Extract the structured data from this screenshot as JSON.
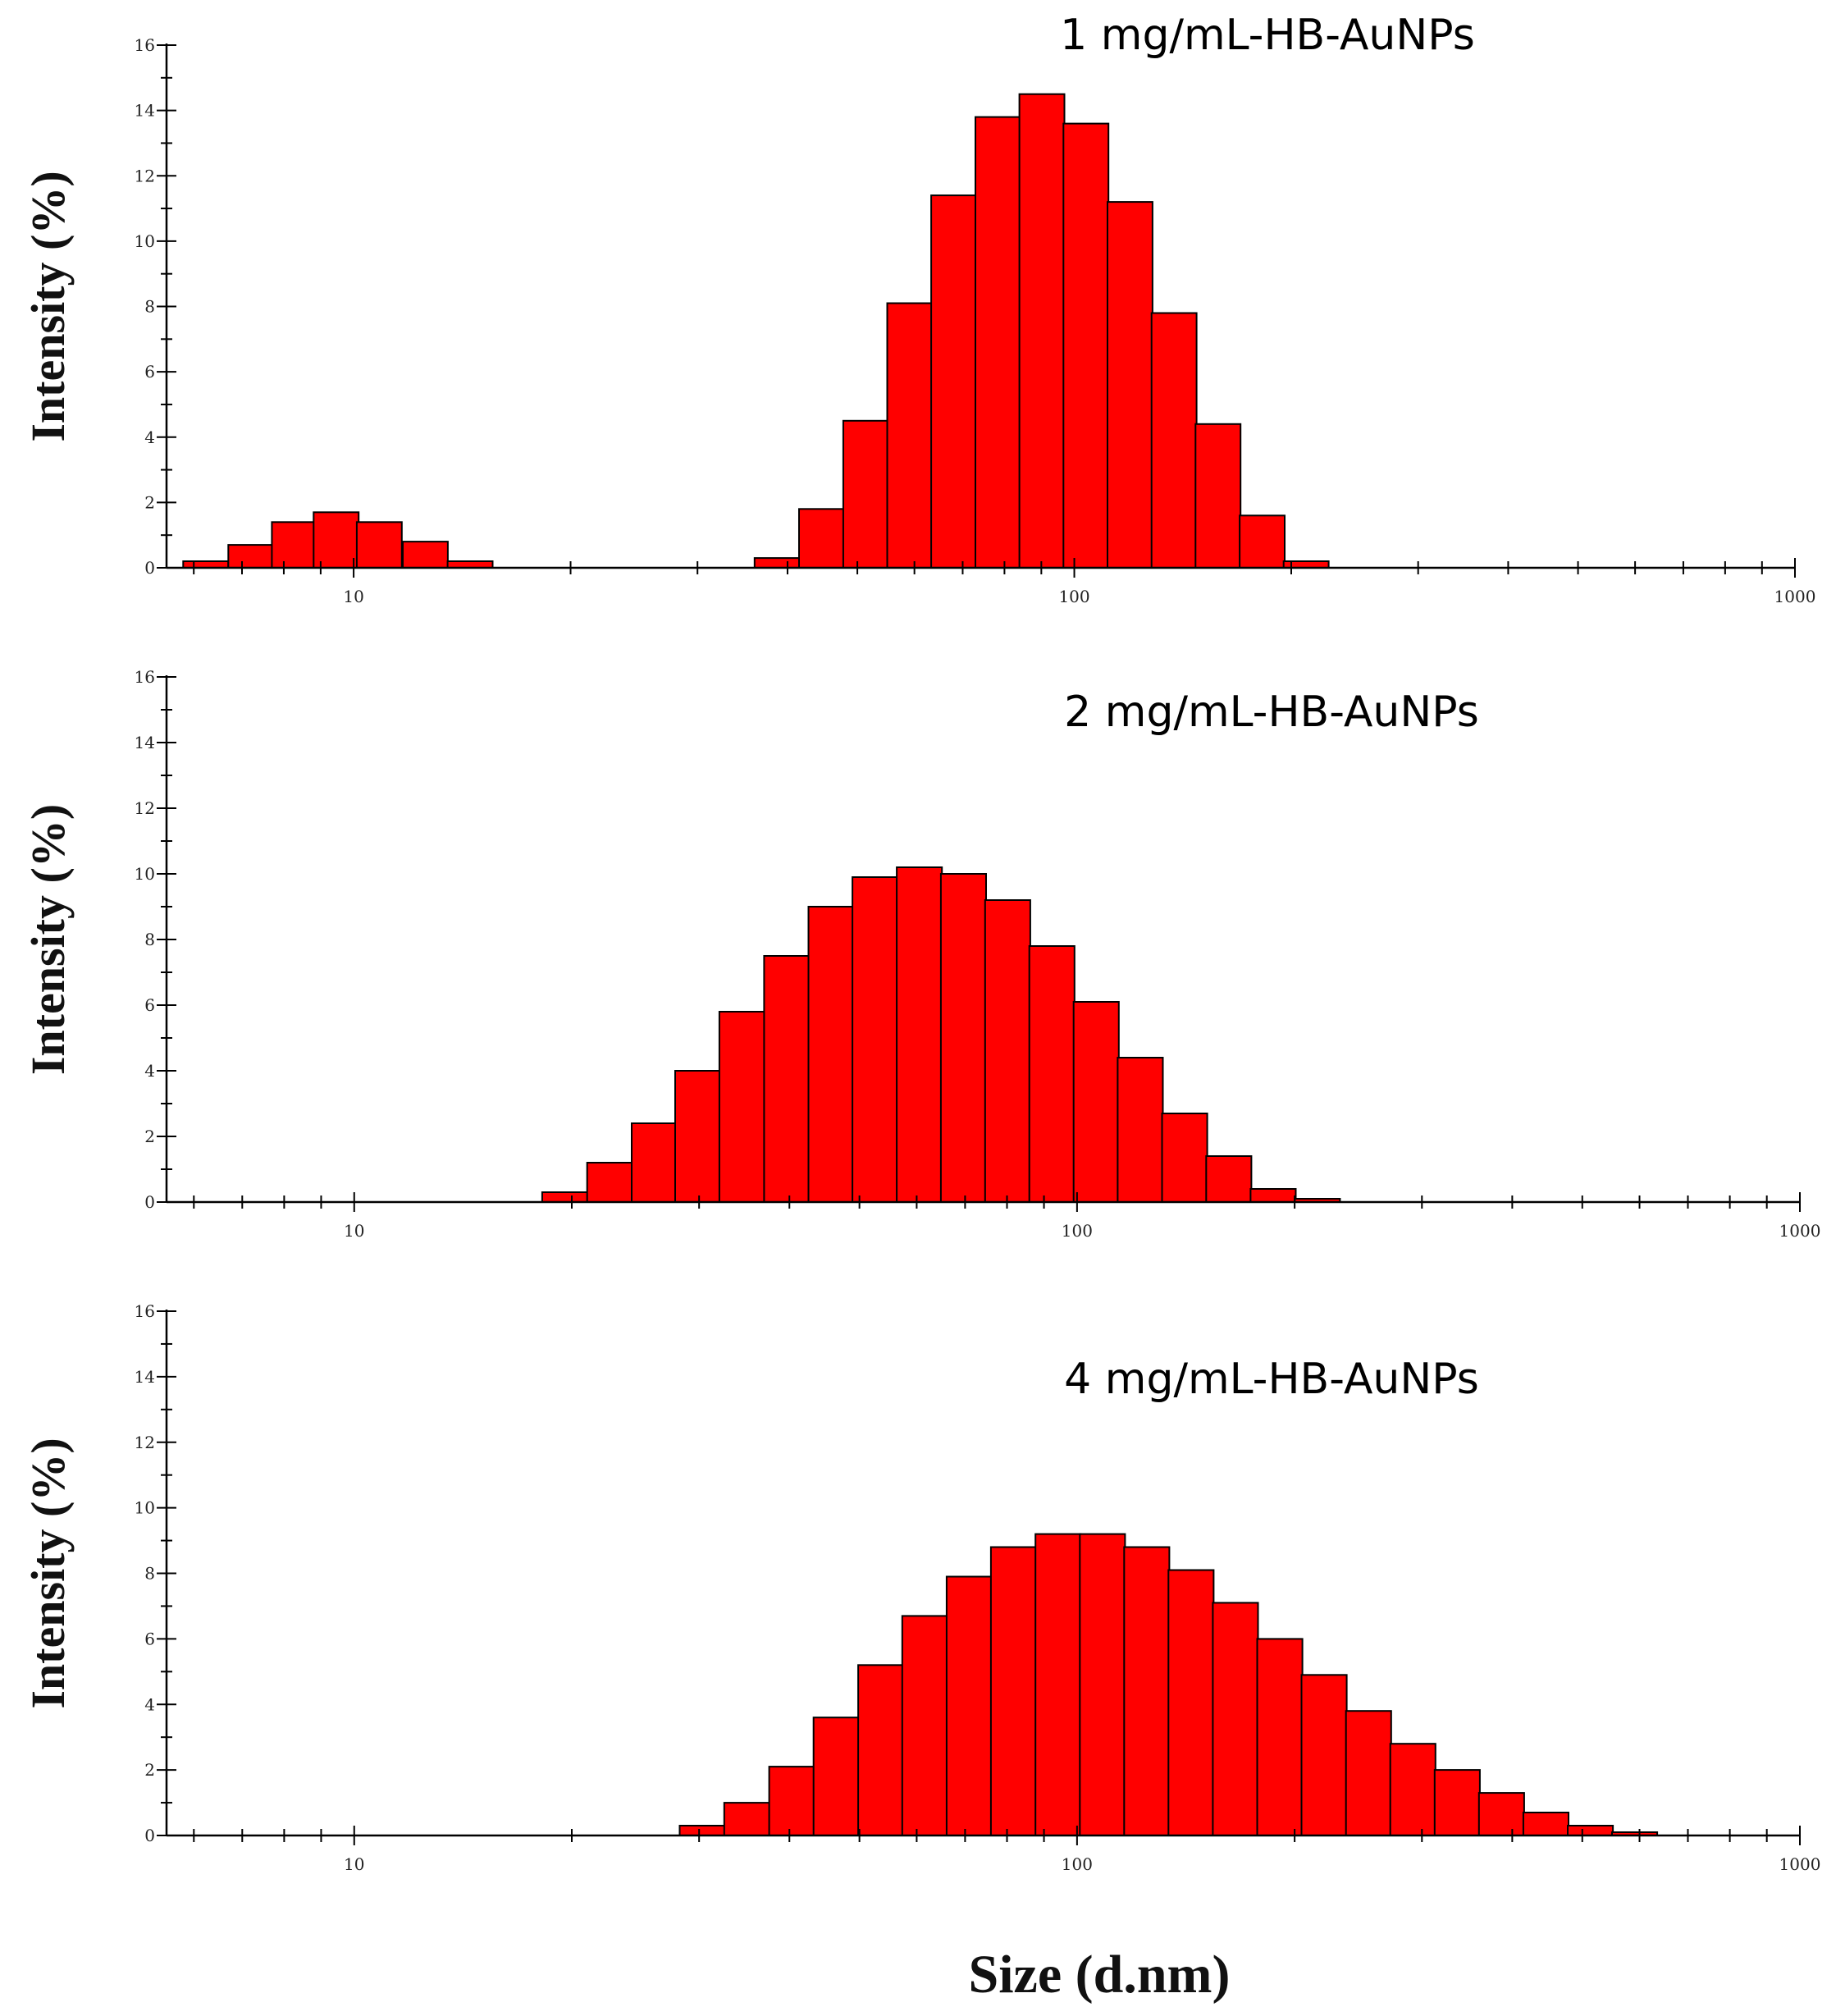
{
  "chart_data": [
    {
      "type": "bar",
      "title": "1 mg/mL-HB-AuNPs",
      "xlabel": "Size (d.nm)",
      "ylabel": "Intensity (%)",
      "xscale": "log",
      "xlim": [
        5.5,
        1000
      ],
      "ylim": [
        0,
        16
      ],
      "yticks": [
        "0",
        "2",
        "4",
        "6",
        "8",
        "10",
        "12",
        "14",
        "16"
      ],
      "xticks": [
        "10",
        "100",
        "1000"
      ],
      "x": [
        5.8,
        6.7,
        7.7,
        8.8,
        10.1,
        11.7,
        13.5,
        15.5,
        17.8,
        20.5,
        23.6,
        27.2,
        31.3,
        36.0,
        41.5,
        47.8,
        55.0,
        63.3,
        72.9,
        83.9,
        96.6,
        111.2,
        128.0,
        147.3,
        169.6,
        195.2,
        224.7
      ],
      "values": [
        0.2,
        0.7,
        1.4,
        1.7,
        1.4,
        0.8,
        0.2,
        0,
        0,
        0,
        0,
        0,
        0,
        0.3,
        1.8,
        4.5,
        8.1,
        11.4,
        13.8,
        14.5,
        13.6,
        11.2,
        7.8,
        4.4,
        1.6,
        0.2,
        0
      ]
    },
    {
      "type": "bar",
      "title": "2 mg/mL-HB-AuNPs",
      "xlabel": "Size (d.nm)",
      "ylabel": "Intensity (%)",
      "xscale": "log",
      "xlim": [
        5.5,
        1000
      ],
      "ylim": [
        0,
        16
      ],
      "yticks": [
        "0",
        "2",
        "4",
        "6",
        "8",
        "10",
        "12",
        "14",
        "16"
      ],
      "xticks": [
        "10",
        "100",
        "1000"
      ],
      "x": [
        18.2,
        21.0,
        24.2,
        27.8,
        32.0,
        36.9,
        42.5,
        48.9,
        56.3,
        64.8,
        74.6,
        85.9,
        98.9,
        113.8,
        131.1,
        150.9,
        173.8,
        200.1,
        230.4
      ],
      "values": [
        0.3,
        1.2,
        2.4,
        4.0,
        5.8,
        7.5,
        9.0,
        9.9,
        10.2,
        10.0,
        9.2,
        7.8,
        6.1,
        4.4,
        2.7,
        1.4,
        0.4,
        0.1,
        0
      ]
    },
    {
      "type": "bar",
      "title": "4 mg/mL-HB-AuNPs",
      "xlabel": "Size (d.nm)",
      "ylabel": "Intensity (%)",
      "xscale": "log",
      "xlim": [
        5.5,
        1000
      ],
      "ylim": [
        0,
        16
      ],
      "yticks": [
        "0",
        "2",
        "4",
        "6",
        "8",
        "10",
        "12",
        "14",
        "16"
      ],
      "xticks": [
        "10",
        "100",
        "1000"
      ],
      "x": [
        28.2,
        32.5,
        37.5,
        43.2,
        49.8,
        57.3,
        66.0,
        76.0,
        87.6,
        100.9,
        116.2,
        133.8,
        154.1,
        177.5,
        204.4,
        235.5,
        271.2,
        312.4,
        359.8,
        414.4,
        477.3,
        549.7,
        633.2
      ],
      "values": [
        0.3,
        1.0,
        2.1,
        3.6,
        5.2,
        6.7,
        7.9,
        8.8,
        9.2,
        9.2,
        8.8,
        8.1,
        7.1,
        6.0,
        4.9,
        3.8,
        2.8,
        2.0,
        1.3,
        0.7,
        0.3,
        0.1,
        0
      ]
    }
  ],
  "shared_xlabel": "Size (d.nm)"
}
